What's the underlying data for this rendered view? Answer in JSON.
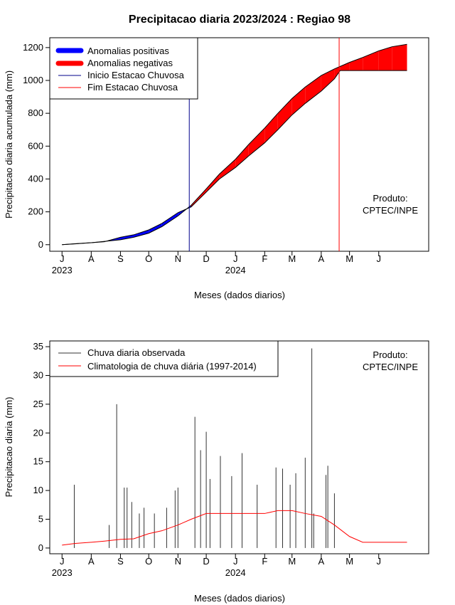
{
  "title": "Precipitacao diaria 2023/2024 : Regiao 98",
  "top_chart": {
    "ylabel": "Precipitacao diaria acumulada (mm)",
    "xlabel": "Meses (dados diarios)",
    "legend": [
      "Anomalias positivas",
      "Anomalias negativas",
      "Inicio Estacao Chuvosa",
      "Fim Estacao Chuvosa"
    ],
    "product": [
      "Produto:",
      "CPTEC/INPE"
    ]
  },
  "bottom_chart": {
    "ylabel": "Precipitacao diaria (mm)",
    "xlabel": "Meses (dados diarios)",
    "legend": [
      "Chuva diaria observada",
      "Climatologia de chuva diária (1997-2014)"
    ],
    "product": [
      "Produto:",
      "CPTEC/INPE"
    ]
  },
  "colors": {
    "positive": "#0000ff",
    "negative": "#ff0000",
    "onset": "#00008b",
    "end": "#ff0000",
    "observed": "#333333",
    "climatology": "#ff0000"
  },
  "chart_data": [
    {
      "type": "area",
      "title": "Precipitacao diaria 2023/2024 : Regiao 98",
      "xlabel": "Meses (dados diarios)",
      "ylabel": "Precipitacao diaria acumulada (mm)",
      "xlim": [
        "2023-06-18",
        "2024-07-24"
      ],
      "ylim": [
        -40,
        1260
      ],
      "xticks": [
        "2023-07-01",
        "2023-08-01",
        "2023-09-01",
        "2023-10-01",
        "2023-11-01",
        "2023-12-01",
        "2024-01-01",
        "2024-02-01",
        "2024-03-01",
        "2024-04-01",
        "2024-05-01",
        "2024-06-01"
      ],
      "xtick_labels": [
        "J",
        "A",
        "S",
        "O",
        "N",
        "D",
        "J",
        "F",
        "M",
        "A",
        "M",
        "J"
      ],
      "year_labels": [
        {
          "x": "2023-07-01",
          "label": "2023"
        },
        {
          "x": "2024-01-01",
          "label": "2024"
        }
      ],
      "yticks": [
        0,
        200,
        400,
        600,
        800,
        1000,
        1200
      ],
      "legend_position": "top-left",
      "onset_date": "2023-11-13",
      "end_date": "2024-04-20",
      "series": [
        {
          "name": "Precipitacao observada acumulada",
          "x": [
            "2023-07-01",
            "2023-07-15",
            "2023-08-01",
            "2023-08-15",
            "2023-09-01",
            "2023-09-15",
            "2023-10-01",
            "2023-10-15",
            "2023-11-01",
            "2023-11-15",
            "2023-12-01",
            "2023-12-15",
            "2024-01-01",
            "2024-01-15",
            "2024-02-01",
            "2024-02-15",
            "2024-03-01",
            "2024-03-15",
            "2024-04-01",
            "2024-04-15",
            "2024-04-21",
            "2024-05-01",
            "2024-05-15",
            "2024-06-01",
            "2024-06-15",
            "2024-07-01"
          ],
          "values": [
            0,
            5,
            12,
            18,
            45,
            60,
            90,
            130,
            195,
            230,
            320,
            400,
            470,
            540,
            620,
            700,
            790,
            860,
            935,
            1010,
            1060,
            1060,
            1060,
            1060,
            1060,
            1060
          ]
        },
        {
          "name": "Climatologia acumulada",
          "x": [
            "2023-07-01",
            "2023-07-15",
            "2023-08-01",
            "2023-08-15",
            "2023-09-01",
            "2023-09-15",
            "2023-10-01",
            "2023-10-15",
            "2023-11-01",
            "2023-11-15",
            "2023-12-01",
            "2023-12-15",
            "2024-01-01",
            "2024-01-15",
            "2024-02-01",
            "2024-02-15",
            "2024-03-01",
            "2024-03-15",
            "2024-04-01",
            "2024-04-15",
            "2024-04-21",
            "2024-05-01",
            "2024-05-15",
            "2024-06-01",
            "2024-06-15",
            "2024-07-01"
          ],
          "values": [
            0,
            6,
            12,
            20,
            30,
            45,
            70,
            110,
            175,
            240,
            340,
            430,
            520,
            610,
            710,
            800,
            890,
            960,
            1030,
            1070,
            1085,
            1110,
            1140,
            1180,
            1205,
            1220
          ]
        }
      ]
    },
    {
      "type": "bar",
      "xlabel": "Meses (dados diarios)",
      "ylabel": "Precipitacao diaria (mm)",
      "xlim": [
        "2023-06-18",
        "2024-07-24"
      ],
      "ylim": [
        -1,
        36
      ],
      "xticks": [
        "2023-07-01",
        "2023-08-01",
        "2023-09-01",
        "2023-10-01",
        "2023-11-01",
        "2023-12-01",
        "2024-01-01",
        "2024-02-01",
        "2024-03-01",
        "2024-04-01",
        "2024-05-01",
        "2024-06-01"
      ],
      "xtick_labels": [
        "J",
        "A",
        "S",
        "O",
        "N",
        "D",
        "J",
        "F",
        "M",
        "A",
        "M",
        "J"
      ],
      "year_labels": [
        {
          "x": "2023-07-01",
          "label": "2023"
        },
        {
          "x": "2024-01-01",
          "label": "2024"
        }
      ],
      "yticks": [
        0,
        5,
        10,
        15,
        20,
        25,
        30,
        35
      ],
      "legend_position": "top-left",
      "series": [
        {
          "name": "Chuva diaria observada",
          "x": [
            "2023-07-14",
            "2023-08-20",
            "2023-08-28",
            "2023-09-05",
            "2023-09-08",
            "2023-09-13",
            "2023-09-21",
            "2023-09-26",
            "2023-10-07",
            "2023-10-20",
            "2023-10-29",
            "2023-11-01",
            "2023-11-19",
            "2023-11-25",
            "2023-12-01",
            "2023-12-05",
            "2023-12-16",
            "2023-12-28",
            "2024-01-08",
            "2024-01-24",
            "2024-02-13",
            "2024-02-20",
            "2024-02-28",
            "2024-03-05",
            "2024-03-15",
            "2024-03-22",
            "2024-03-24",
            "2024-04-06",
            "2024-04-08",
            "2024-04-15"
          ],
          "values": [
            11,
            4,
            25,
            10.5,
            10.5,
            8,
            6,
            7,
            6,
            7,
            10,
            10.5,
            22.8,
            17,
            20.2,
            12,
            16,
            12.5,
            16.5,
            11,
            14,
            13.8,
            11,
            13,
            15.7,
            34.7,
            6,
            12.7,
            14.3,
            9.5
          ]
        },
        {
          "name": "Climatologia de chuva diária (1997-2014)",
          "x": [
            "2023-07-01",
            "2023-07-15",
            "2023-08-01",
            "2023-08-15",
            "2023-09-01",
            "2023-09-15",
            "2023-10-01",
            "2023-10-15",
            "2023-11-01",
            "2023-11-15",
            "2023-12-01",
            "2023-12-15",
            "2024-01-01",
            "2024-01-15",
            "2024-02-01",
            "2024-02-15",
            "2024-03-01",
            "2024-03-15",
            "2024-04-01",
            "2024-04-15",
            "2024-05-01",
            "2024-05-15",
            "2024-06-01",
            "2024-06-15",
            "2024-07-01"
          ],
          "values": [
            0.5,
            0.8,
            1,
            1.2,
            1.5,
            1.6,
            2.5,
            3,
            4,
            5,
            6,
            6,
            6,
            6,
            6,
            6.5,
            6.5,
            6,
            5.5,
            4,
            2,
            1,
            1,
            1,
            1
          ]
        }
      ]
    }
  ]
}
